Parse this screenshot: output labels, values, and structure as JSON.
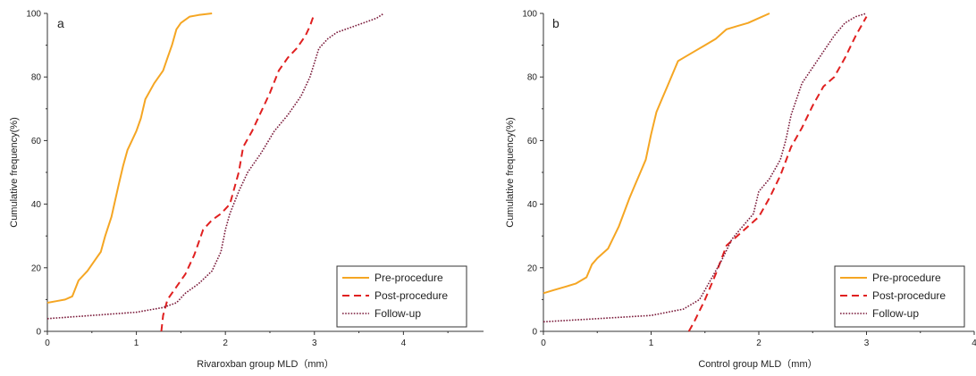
{
  "chart_data": [
    {
      "type": "line",
      "panel_label": "a",
      "xlabel": "Rivaroxban group MLD（mm）",
      "ylabel": "Cumulative frequency(%)",
      "xlim": [
        0,
        4.9
      ],
      "ylim": [
        0,
        100
      ],
      "xticks": [
        0,
        1,
        2,
        3,
        4
      ],
      "yticks": [
        0,
        20,
        40,
        60,
        80,
        100
      ],
      "grid": false,
      "legend_position": "bottom-right",
      "series": [
        {
          "name": "Pre-procedure",
          "color": "#f5a623",
          "style": "solid",
          "x": [
            0,
            0.1,
            0.2,
            0.28,
            0.35,
            0.45,
            0.55,
            0.6,
            0.65,
            0.72,
            0.8,
            0.85,
            0.9,
            0.95,
            1.0,
            1.05,
            1.1,
            1.2,
            1.3,
            1.35,
            1.4,
            1.45,
            1.5,
            1.55,
            1.6,
            1.7,
            1.85
          ],
          "y": [
            9,
            9.5,
            10,
            11,
            16,
            19,
            23,
            25,
            30,
            36,
            46,
            52,
            57,
            60,
            63,
            67,
            73,
            78,
            82,
            86,
            90,
            95,
            97,
            98,
            99,
            99.5,
            100
          ]
        },
        {
          "name": "Post-procedure",
          "color": "#e02020",
          "style": "dashed",
          "x": [
            1.28,
            1.3,
            1.35,
            1.45,
            1.55,
            1.65,
            1.75,
            1.85,
            1.95,
            2.05,
            2.15,
            2.2,
            2.3,
            2.4,
            2.5,
            2.6,
            2.7,
            2.8,
            2.9,
            2.95,
            3.0
          ],
          "y": [
            0,
            5,
            10,
            14,
            18,
            24,
            32,
            35,
            37,
            40,
            50,
            58,
            63,
            69,
            75,
            82,
            86,
            89,
            93,
            96,
            100
          ]
        },
        {
          "name": "Follow-up",
          "color": "#7a1a3a",
          "style": "dotted",
          "x": [
            0,
            0.5,
            1.0,
            1.3,
            1.45,
            1.55,
            1.7,
            1.85,
            1.95,
            2.0,
            2.05,
            2.15,
            2.25,
            2.4,
            2.55,
            2.7,
            2.85,
            2.95,
            3.05,
            3.15,
            3.25,
            3.4,
            3.55,
            3.7,
            3.78
          ],
          "y": [
            4,
            5,
            6,
            7.5,
            9,
            12,
            15,
            19,
            25,
            32,
            37,
            44,
            50,
            56,
            63,
            68,
            74,
            80,
            89,
            92,
            94,
            95.5,
            97,
            98.5,
            100
          ]
        }
      ]
    },
    {
      "type": "line",
      "panel_label": "b",
      "xlabel": "Control group MLD（mm）",
      "ylabel": "Cumulative frequency(%)",
      "xlim": [
        0,
        4.0
      ],
      "ylim": [
        0,
        100
      ],
      "xticks": [
        0,
        1,
        2,
        3,
        4
      ],
      "yticks": [
        0,
        20,
        40,
        60,
        80,
        100
      ],
      "grid": false,
      "legend_position": "bottom-right",
      "series": [
        {
          "name": "Pre-procedure",
          "color": "#f5a623",
          "style": "solid",
          "x": [
            0,
            0.1,
            0.2,
            0.3,
            0.4,
            0.45,
            0.5,
            0.6,
            0.7,
            0.8,
            0.85,
            0.9,
            0.95,
            1.0,
            1.05,
            1.1,
            1.15,
            1.2,
            1.25,
            1.3,
            1.4,
            1.5,
            1.6,
            1.7,
            1.8,
            1.9,
            2.0,
            2.1
          ],
          "y": [
            12,
            13,
            14,
            15,
            17,
            21,
            23,
            26,
            33,
            42,
            46,
            50,
            54,
            62,
            69,
            73,
            77,
            81,
            85,
            86,
            88,
            90,
            92,
            95,
            96,
            97,
            98.5,
            100
          ]
        },
        {
          "name": "Post-procedure",
          "color": "#e02020",
          "style": "dashed",
          "x": [
            1.35,
            1.4,
            1.5,
            1.6,
            1.7,
            1.8,
            1.9,
            2.0,
            2.1,
            2.2,
            2.3,
            2.4,
            2.5,
            2.6,
            2.7,
            2.8,
            2.9,
            3.0
          ],
          "y": [
            0,
            3,
            10,
            18,
            27,
            30,
            33,
            36,
            42,
            49,
            58,
            64,
            71,
            77,
            80,
            86,
            93,
            99
          ]
        },
        {
          "name": "Follow-up",
          "color": "#7a1a3a",
          "style": "dotted",
          "x": [
            0,
            0.5,
            1.0,
            1.3,
            1.45,
            1.55,
            1.65,
            1.75,
            1.85,
            1.95,
            2.0,
            2.1,
            2.2,
            2.25,
            2.3,
            2.4,
            2.5,
            2.6,
            2.7,
            2.8,
            2.9,
            3.0
          ],
          "y": [
            3,
            4,
            5,
            7,
            10,
            16,
            22,
            29,
            33,
            37,
            44,
            48,
            54,
            60,
            68,
            78,
            83,
            88,
            93,
            97,
            99,
            100
          ]
        }
      ]
    }
  ]
}
